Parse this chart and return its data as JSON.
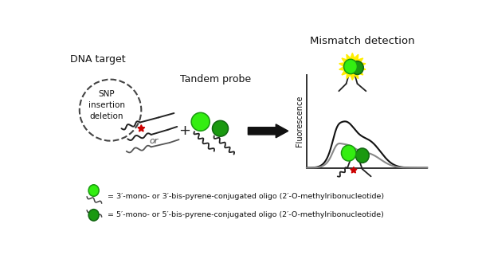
{
  "title": "Mismatch detection",
  "dna_target_label": "DNA target",
  "tandem_probe_label": "Tandem probe",
  "snp_text": "SNP\ninsertion\ndeletion",
  "or_text": "or",
  "legend_line1": "= 3′-mono- or 3′-bis-pyrene-conjugated oligo (2′-O-methylribonucleotide)",
  "legend_line2": "= 5′-mono- or 5′-bis-pyrene-conjugated oligo (2′-O-methylribonucleotide)",
  "green_bright": "#33ee11",
  "green_dark": "#1a9910",
  "red_star_color": "#cc0000",
  "yellow_color": "#ffee00",
  "bg_color": "#ffffff",
  "arrow_color": "#111111",
  "graph_xlim": [
    0,
    600
  ],
  "graph_ylim": [
    0,
    330
  ]
}
